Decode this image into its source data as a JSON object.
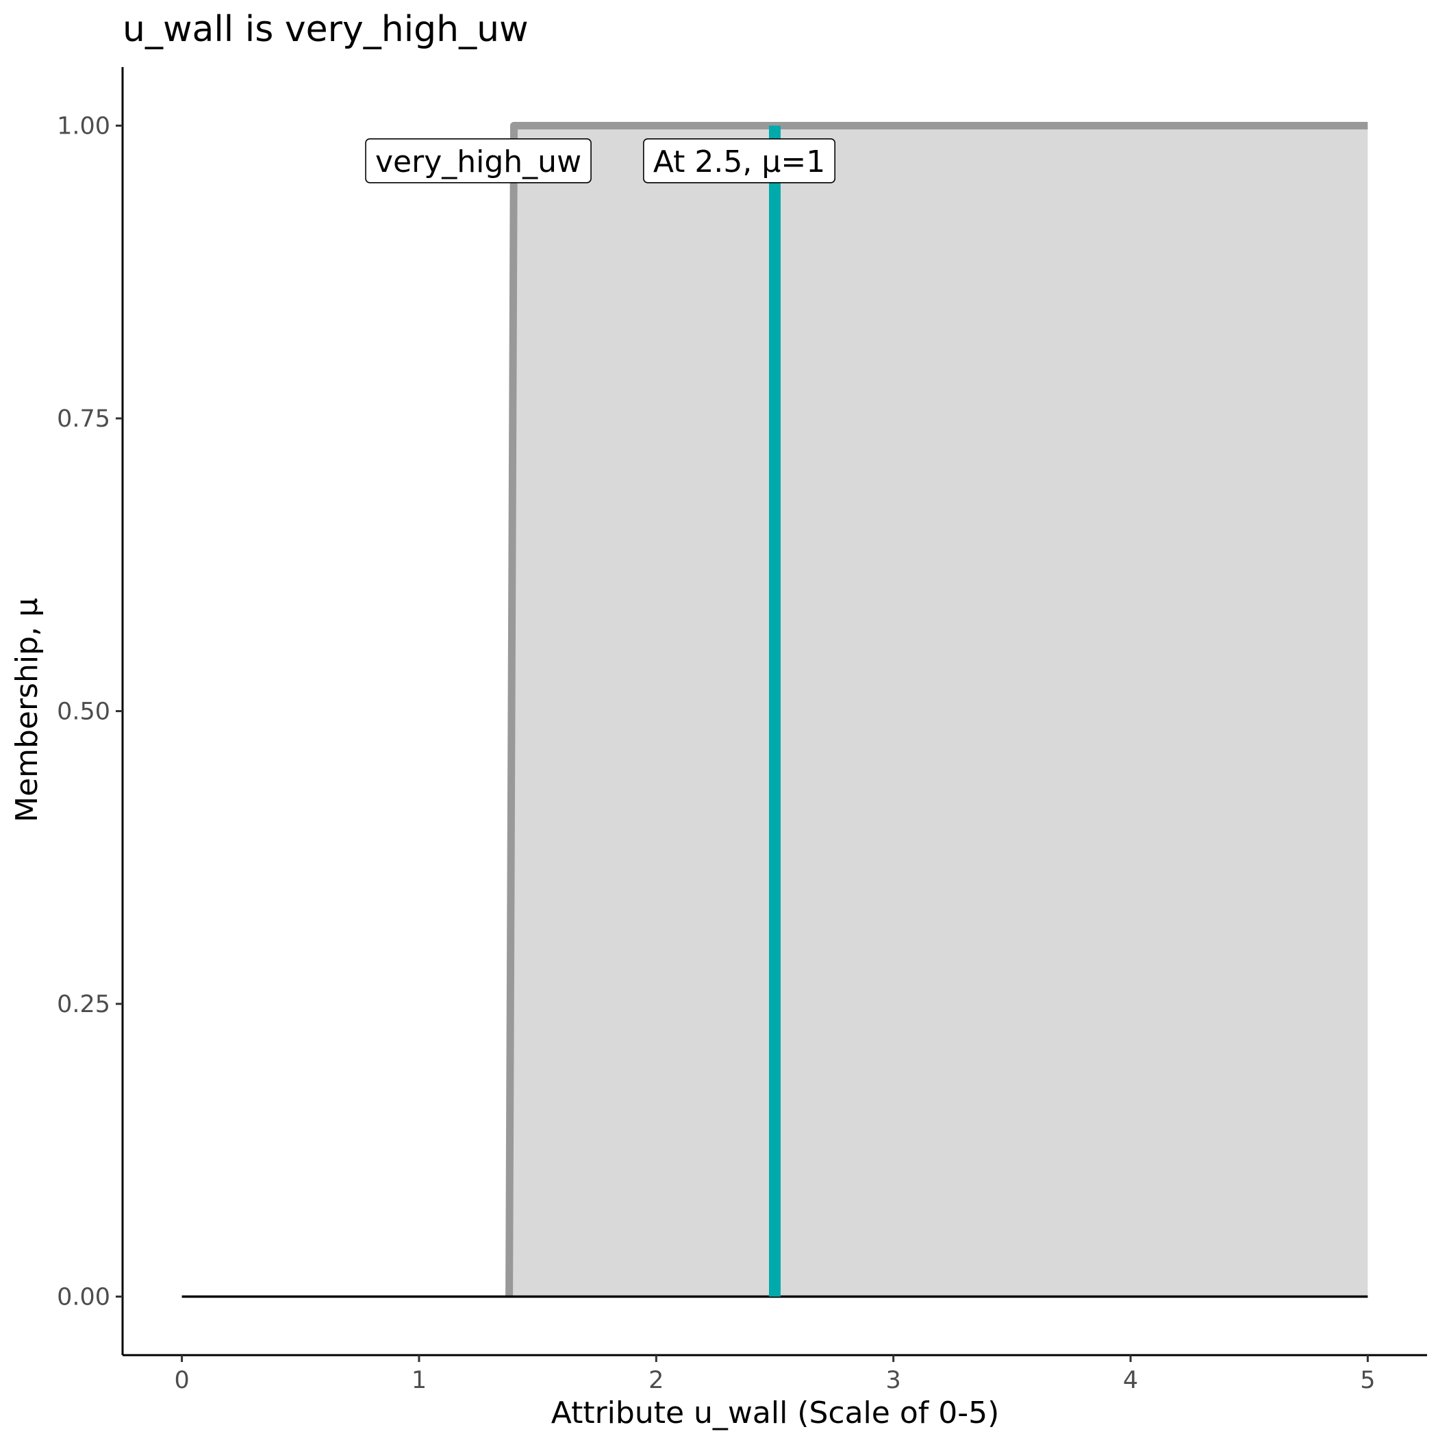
{
  "chart_data": {
    "type": "area",
    "title": "u_wall is very_high_uw",
    "xlabel": "Attribute u_wall (Scale of 0-5)",
    "ylabel": "Membership, μ",
    "xlim": [
      -0.25,
      5.25
    ],
    "ylim": [
      -0.05,
      1.05
    ],
    "x_ticks": [
      0,
      1,
      2,
      3,
      4,
      5
    ],
    "x_tick_labels": [
      "0",
      "1",
      "2",
      "3",
      "4",
      "5"
    ],
    "y_ticks": [
      0,
      0.25,
      0.5,
      0.75,
      1
    ],
    "y_tick_labels": [
      "0.00",
      "0.25",
      "0.50",
      "0.75",
      "1.00"
    ],
    "grid": false,
    "membership_function": {
      "name": "very_high_uw",
      "x": [
        0,
        1.38,
        1.4,
        5
      ],
      "y": [
        0,
        0,
        1,
        1
      ]
    },
    "baseline": {
      "x": [
        0,
        5
      ],
      "y": 0
    },
    "marker": {
      "x": 2.5,
      "y": 1
    },
    "annotations": [
      {
        "text": "very_high_uw",
        "x": 1.25,
        "y": 0.97
      },
      {
        "text": "At 2.5, μ=1",
        "x": 2.35,
        "y": 0.97
      }
    ],
    "colors": {
      "fill": "#D9D9D9",
      "line": "#999999",
      "marker": "#00AAAA",
      "baseline": "#000000",
      "tick_text": "#4D4D4D"
    }
  }
}
